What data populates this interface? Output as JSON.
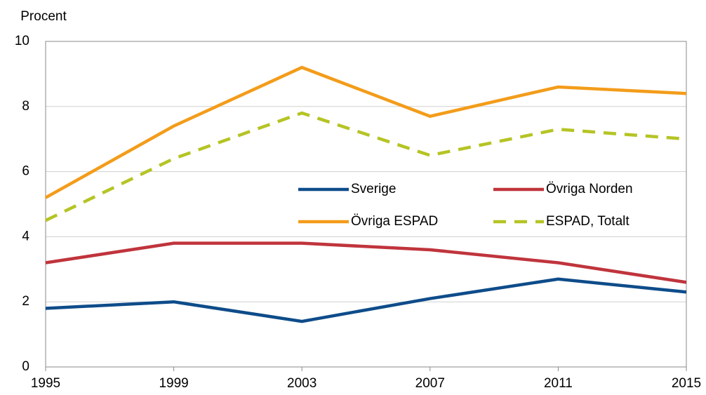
{
  "chart_data": {
    "type": "line",
    "y_label": "Procent",
    "x": [
      1995,
      1999,
      2003,
      2007,
      2011,
      2015
    ],
    "xlim": [
      1995,
      2015
    ],
    "xticks": [
      1995,
      1999,
      2003,
      2007,
      2011,
      2015
    ],
    "ylim": [
      0,
      10
    ],
    "yticks": [
      0,
      2,
      4,
      6,
      8,
      10
    ],
    "grid": true,
    "series": [
      {
        "name": "Sverige",
        "color": "#0e4c8a",
        "dashed": false,
        "values": [
          1.8,
          2.0,
          1.4,
          2.1,
          2.7,
          2.3
        ]
      },
      {
        "name": "Övriga Norden",
        "color": "#c0343c",
        "dashed": false,
        "values": [
          3.2,
          3.8,
          3.8,
          3.6,
          3.2,
          2.6
        ]
      },
      {
        "name": "Övriga ESPAD",
        "color": "#f39c1a",
        "dashed": false,
        "values": [
          5.2,
          7.4,
          9.2,
          7.7,
          8.6,
          8.4
        ]
      },
      {
        "name": "ESPAD, Totalt",
        "color": "#b5c424",
        "dashed": true,
        "values": [
          4.5,
          6.4,
          7.8,
          6.5,
          7.3,
          7.0
        ]
      }
    ]
  }
}
